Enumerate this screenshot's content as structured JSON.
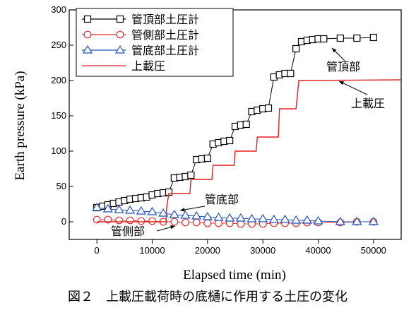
{
  "chart_data": {
    "type": "line",
    "xlabel": "Elapsed time (min)",
    "ylabel": "Earth pressure (kPa)",
    "caption": "図２　上載圧載荷時の底樋に作用する土圧の変化",
    "xlim": [
      -5000,
      55000
    ],
    "xticks": [
      0,
      10000,
      20000,
      30000,
      40000,
      50000
    ],
    "ylim": [
      -25,
      300
    ],
    "yticks": [
      0,
      50,
      100,
      150,
      200,
      250,
      300
    ],
    "legend": "upper left",
    "series": [
      {
        "name": "管頂部土圧計",
        "color": "#000000",
        "marker": "square",
        "x": [
          0,
          1000,
          2000,
          3000,
          4000,
          5000,
          6000,
          7000,
          8000,
          9000,
          10000,
          11000,
          12000,
          13000,
          14000,
          15000,
          16000,
          17000,
          18000,
          19000,
          20000,
          21000,
          22000,
          23000,
          24000,
          25000,
          26000,
          27000,
          28000,
          29000,
          30000,
          31000,
          32000,
          33000,
          34000,
          35000,
          36000,
          37000,
          38000,
          39000,
          40000,
          41000,
          44000,
          47000,
          50000
        ],
        "values": [
          20,
          22,
          24,
          26,
          28,
          30,
          32,
          33,
          34,
          35,
          38,
          40,
          41,
          42,
          62,
          63,
          64,
          66,
          88,
          89,
          90,
          110,
          112,
          114,
          115,
          135,
          137,
          138,
          156,
          158,
          160,
          161,
          205,
          208,
          210,
          210,
          245,
          255,
          257,
          258,
          259,
          259,
          260,
          260,
          261
        ]
      },
      {
        "name": "管側部土圧計",
        "color": "#e03030",
        "marker": "circle",
        "x": [
          0,
          2000,
          4000,
          6000,
          8000,
          10000,
          12000,
          14000,
          16000,
          18000,
          20000,
          22000,
          24000,
          26000,
          28000,
          30000,
          32000,
          34000,
          36000,
          38000,
          40000,
          44000,
          47000,
          50000
        ],
        "values": [
          3,
          3,
          2,
          2,
          1,
          1,
          0,
          0,
          -1,
          -1,
          -2,
          -2,
          -2,
          -3,
          -3,
          -3,
          -2,
          -2,
          -2,
          -1,
          -1,
          -1,
          0,
          0
        ]
      },
      {
        "name": "管底部土圧計",
        "color": "#2050c0",
        "marker": "triangle",
        "x": [
          0,
          2000,
          4000,
          6000,
          8000,
          10000,
          12000,
          14000,
          16000,
          18000,
          20000,
          22000,
          24000,
          26000,
          28000,
          30000,
          32000,
          34000,
          36000,
          38000,
          40000,
          44000,
          47000,
          50000
        ],
        "values": [
          20,
          18,
          17,
          16,
          15,
          14,
          12,
          10,
          9,
          8,
          7,
          6,
          5,
          5,
          4,
          4,
          3,
          3,
          2,
          2,
          1,
          0,
          0,
          0
        ]
      },
      {
        "name": "上載圧",
        "color": "#e02020",
        "marker": "none",
        "x": [
          0,
          12500,
          12600,
          13000,
          16800,
          17000,
          20800,
          21000,
          24800,
          25000,
          28800,
          29000,
          32800,
          33000,
          36000,
          36500,
          55000
        ],
        "values": [
          0,
          0,
          20,
          40,
          40,
          60,
          60,
          80,
          80,
          100,
          100,
          120,
          120,
          160,
          160,
          200,
          201
        ]
      }
    ],
    "annotations": [
      {
        "text": "管頂部"
      },
      {
        "text": "上載圧"
      },
      {
        "text": "管底部"
      },
      {
        "text": "管側部"
      }
    ]
  }
}
